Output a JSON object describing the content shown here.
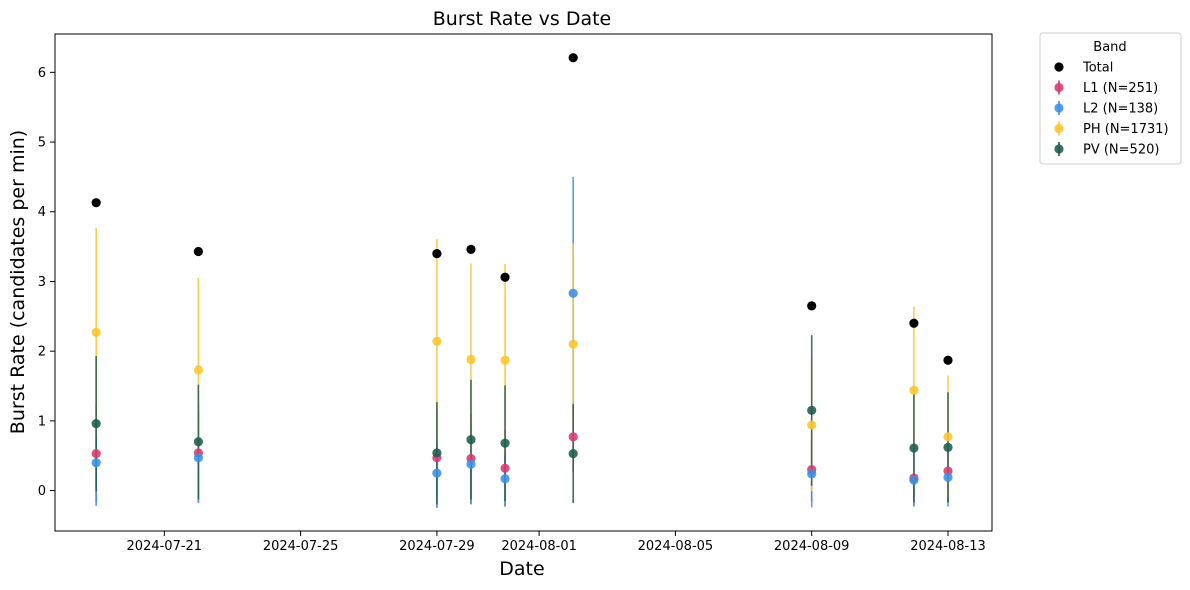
{
  "chart_data": {
    "type": "scatter",
    "title": "Burst Rate vs Date",
    "xlabel": "Date",
    "ylabel": "Burst Rate (candidates per min)",
    "xlim": [
      "2024-07-17T19:00",
      "2024-08-14T07:00"
    ],
    "ylim": [
      -0.58,
      6.55
    ],
    "x_ticks": [
      "2024-07-21",
      "2024-07-25",
      "2024-07-29",
      "2024-08-01",
      "2024-08-05",
      "2024-08-09",
      "2024-08-13"
    ],
    "y_ticks": [
      0,
      1,
      2,
      3,
      4,
      5,
      6
    ],
    "grid": false,
    "legend": {
      "title": "Band",
      "placement": "outside-upper-right"
    },
    "x": [
      "2024-07-19",
      "2024-07-22",
      "2024-07-29",
      "2024-07-30",
      "2024-07-31",
      "2024-08-02",
      "2024-08-09",
      "2024-08-12",
      "2024-08-13"
    ],
    "series": [
      {
        "name": "Total",
        "color": "#000000",
        "errorbars": false,
        "values": [
          4.13,
          3.43,
          3.4,
          3.46,
          3.06,
          6.21,
          2.65,
          2.4,
          1.87
        ]
      },
      {
        "name": "L1 (N=251)",
        "color": "#d63a6e",
        "errorbars": true,
        "values": [
          0.53,
          0.54,
          0.47,
          0.46,
          0.32,
          0.77,
          0.3,
          0.18,
          0.28
        ],
        "errors": [
          0.7,
          0.7,
          0.7,
          0.65,
          0.55,
          0.5,
          0.45,
          0.4,
          0.45
        ]
      },
      {
        "name": "L2 (N=138)",
        "color": "#3a8fe0",
        "errorbars": true,
        "values": [
          0.4,
          0.47,
          0.25,
          0.38,
          0.17,
          2.83,
          0.24,
          0.15,
          0.19
        ],
        "errors": [
          0.62,
          0.65,
          0.5,
          0.58,
          0.4,
          1.67,
          0.48,
          0.38,
          0.42
        ]
      },
      {
        "name": "PH (N=1731)",
        "color": "#fcc52e",
        "errorbars": true,
        "values": [
          2.27,
          1.73,
          2.14,
          1.88,
          1.87,
          2.1,
          0.94,
          1.44,
          0.77
        ],
        "errors": [
          1.5,
          1.32,
          1.47,
          1.38,
          1.38,
          1.45,
          0.95,
          1.2,
          0.88
        ]
      },
      {
        "name": "PV (N=520)",
        "color": "#1f5c4d",
        "errorbars": true,
        "values": [
          0.96,
          0.7,
          0.54,
          0.73,
          0.68,
          0.53,
          1.15,
          0.61,
          0.62
        ],
        "errors": [
          0.97,
          0.82,
          0.73,
          0.86,
          0.83,
          0.71,
          1.08,
          0.78,
          0.79
        ]
      }
    ]
  }
}
